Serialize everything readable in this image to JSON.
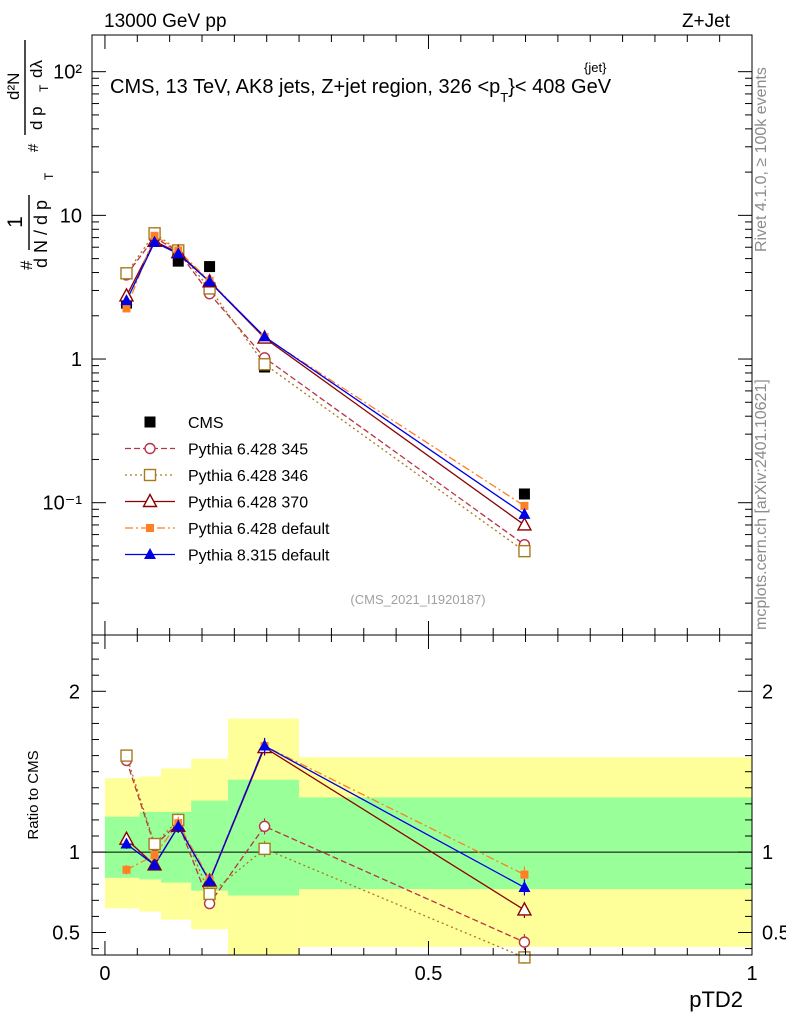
{
  "header": {
    "energy_label": "13000 GeV pp",
    "process_label": "Z+Jet",
    "plot_title": "CMS, 13 TeV, AK8 jets, Z+jet region, 326 <p",
    "plot_title_sup": "{jet}",
    "plot_title_sub": "T",
    "plot_title_end": "}< 408 GeV",
    "analysis_id": "(CMS_2021_I1920187)"
  },
  "side_labels": {
    "rivet": "Rivet 4.1.0, ≥ 100k events",
    "mcplots": "mcplots.cern.ch [arXiv:2401.10621]"
  },
  "axis": {
    "xlabel": "pTD2",
    "ylabel_ratio": "Ratio to CMS",
    "ylabel_top_parts": {
      "hash": "#",
      "one": "1",
      "dN": "d N / d p",
      "T": "T",
      "d2N": "d²N",
      "den": "d p",
      "dl": "dλ"
    },
    "x_ticks": [
      "0",
      "0.5",
      "1"
    ],
    "y_ticks_main": [
      "10⁻¹",
      "1",
      "10",
      "10²"
    ],
    "y_ticks_ratio": [
      "0.5",
      "1",
      "2"
    ]
  },
  "chart_data": {
    "type": "line",
    "x": [
      0.0333,
      0.0767,
      0.1133,
      0.1617,
      0.2467,
      0.6483
    ],
    "xlim": [
      -0.02,
      1.0
    ],
    "main": {
      "yscale": "log",
      "ylim": [
        0.012,
        180
      ],
      "data_series": {
        "name": "CMS",
        "values": [
          2.45,
          7.3,
          4.8,
          4.4,
          0.88,
          0.115
        ]
      }
    },
    "ratio": {
      "ylim": [
        0.36,
        2.35
      ],
      "band_edges": [
        0.0,
        0.0533,
        0.0867,
        0.1333,
        0.19,
        0.3,
        1.0
      ],
      "bands": [
        {
          "name": "stat",
          "color": "#99ff99",
          "low": [
            0.84,
            0.83,
            0.81,
            0.76,
            0.73,
            0.77
          ],
          "high": [
            1.22,
            1.25,
            1.25,
            1.32,
            1.45,
            1.34
          ]
        },
        {
          "name": "total",
          "color": "#ffff99",
          "low": [
            0.65,
            0.63,
            0.58,
            0.52,
            0.35,
            0.41
          ],
          "high": [
            1.46,
            1.47,
            1.52,
            1.58,
            1.83,
            1.59
          ]
        }
      ]
    },
    "series": [
      {
        "name": "Pythia 6.428 345",
        "color": "#b83347",
        "marker": "open-circle",
        "dash": "6 3",
        "values": [
          3.85,
          7.0,
          5.6,
          2.85,
          1.02,
          0.051
        ],
        "ratio": [
          1.57,
          1.04,
          1.18,
          0.68,
          1.16,
          0.44
        ],
        "ratio_err": [
          0.03,
          0.03,
          0.04,
          0.03,
          0.05,
          0.05
        ]
      },
      {
        "name": "Pythia 6.428 346",
        "color": "#a87a1e",
        "marker": "open-square",
        "dash": "2 3",
        "values": [
          3.95,
          7.5,
          5.7,
          3.1,
          0.92,
          0.046
        ],
        "ratio": [
          1.6,
          1.05,
          1.2,
          0.74,
          1.02,
          0.345
        ],
        "ratio_err": [
          0.03,
          0.03,
          0.04,
          0.03,
          0.05,
          0.04
        ]
      },
      {
        "name": "Pythia 6.428 370",
        "color": "#8b0000",
        "marker": "open-triangle",
        "dash": "",
        "values": [
          2.75,
          6.6,
          5.5,
          3.45,
          1.4,
          0.07
        ],
        "ratio": [
          1.08,
          0.92,
          1.16,
          0.82,
          1.65,
          0.64
        ],
        "ratio_err": [
          0.03,
          0.03,
          0.04,
          0.03,
          0.05,
          0.05
        ]
      },
      {
        "name": "Pythia 6.428 default",
        "color": "#ff7f24",
        "marker": "filled-square",
        "dash": "8 3 2 3",
        "values": [
          2.25,
          7.2,
          5.7,
          3.5,
          1.42,
          0.095
        ],
        "ratio": [
          0.89,
          0.98,
          1.18,
          0.83,
          1.66,
          0.86
        ],
        "ratio_err": [
          0.03,
          0.03,
          0.04,
          0.03,
          0.05,
          0.05
        ]
      },
      {
        "name": "Pythia 8.315 default",
        "color": "#0000e6",
        "marker": "filled-triangle",
        "dash": "",
        "values": [
          2.55,
          6.5,
          5.4,
          3.45,
          1.43,
          0.083
        ],
        "ratio": [
          1.05,
          0.92,
          1.16,
          0.82,
          1.66,
          0.78
        ],
        "ratio_err": [
          0.03,
          0.03,
          0.04,
          0.03,
          0.05,
          0.05
        ]
      }
    ],
    "legend": {
      "position": "left",
      "entries": [
        "CMS",
        "Pythia 6.428 345",
        "Pythia 6.428 346",
        "Pythia 6.428 370",
        "Pythia 6.428 default",
        "Pythia 8.315 default"
      ]
    }
  }
}
